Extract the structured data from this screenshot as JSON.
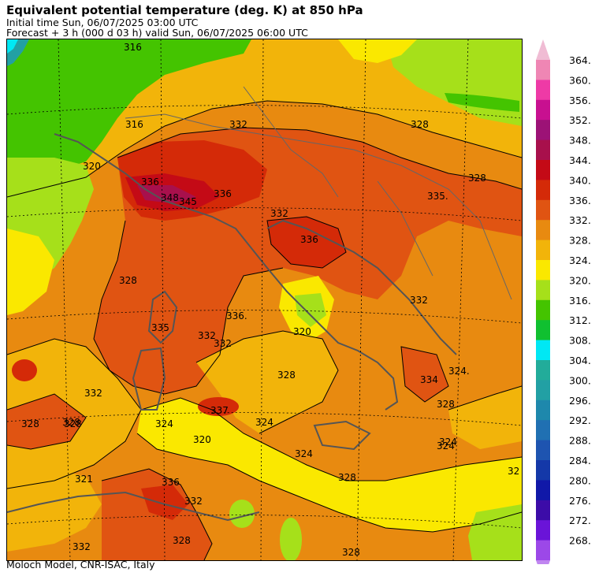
{
  "header": {
    "title": "Equivalent potential temperature (deg. K) at 850 hPa",
    "initial_time": "Initial time  Sun, 06/07/2025  03:00 UTC",
    "forecast": "Forecast  +   3 h  (000 d 03 h)  valid Sun, 06/07/2025 06:00 UTC"
  },
  "footer": "Moloch Model, CNR-ISAC, Italy",
  "colorbar": {
    "labels": [
      "364.",
      "360.",
      "356.",
      "352.",
      "348.",
      "344.",
      "340.",
      "336.",
      "332.",
      "328.",
      "324.",
      "320.",
      "316.",
      "312.",
      "308.",
      "304.",
      "300.",
      "296.",
      "292.",
      "288.",
      "284.",
      "280.",
      "276.",
      "272.",
      "268."
    ],
    "colors": [
      "#ef86b4",
      "#ee3aa6",
      "#c81090",
      "#9c1276",
      "#a8104c",
      "#c40a16",
      "#d42a08",
      "#e05412",
      "#e88a10",
      "#f2b40a",
      "#fae800",
      "#a6e01a",
      "#44c400",
      "#10c030",
      "#00e8f4",
      "#22ac9a",
      "#22a0a4",
      "#1e88ac",
      "#2070b2",
      "#1e54b0",
      "#1438a8",
      "#1018a8",
      "#3c0ca8",
      "#6a14d8",
      "#9c48e8"
    ],
    "top_cap_color": "#f0bcd4",
    "bottom_cap_color": "#c086f0"
  },
  "contour_labels": [
    "316",
    "316",
    "320",
    "332",
    "336",
    "348",
    "345",
    "336",
    "332",
    "336",
    "335.",
    "328",
    "328",
    "328",
    "335",
    "332",
    "336.",
    "332",
    "328",
    "328",
    "332",
    "324",
    "337",
    "320",
    "320",
    "328",
    "324",
    "332",
    "324",
    "324.",
    "334",
    "328",
    "324",
    "321",
    "336",
    "332",
    "328",
    "332",
    "328",
    "324",
    "328",
    "328",
    "32"
  ]
}
